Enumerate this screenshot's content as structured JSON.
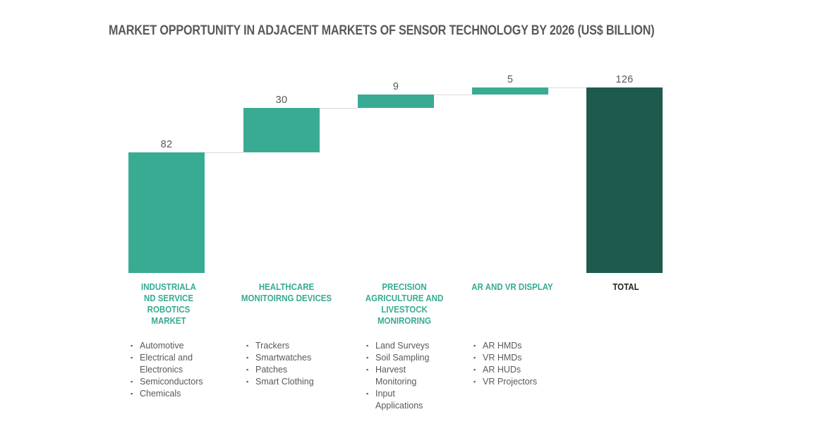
{
  "chart_data": {
    "type": "waterfall",
    "title": "MARKET OPPORTUNITY IN ADJACENT MARKETS OF SENSOR TECHNOLOGY BY 2026 (US$ BILLION)",
    "total": 126,
    "ylim": [
      0,
      126
    ],
    "bullet_glyph": "▪",
    "categories": [
      {
        "label": "INDUSTRIALA ND SERVICE ROBOTICS MARKET",
        "label_lines": [
          "INDUSTRIALA",
          "ND SERVICE",
          "ROBOTICS",
          "MARKET"
        ],
        "value": 82,
        "is_total": false,
        "sub_items": [
          "Automotive",
          "Electrical and Electronics",
          "Semiconductors",
          "Chemicals"
        ]
      },
      {
        "label": "HEALTHCARE MONITOIRNG DEVICES",
        "label_lines": [
          "HEALTHCARE",
          "MONITOIRNG DEVICES"
        ],
        "value": 30,
        "is_total": false,
        "sub_items": [
          "Trackers",
          "Smartwatches",
          "Patches",
          "Smart Clothing"
        ]
      },
      {
        "label": "PRECISION AGRICULTURE AND LIVESTOCK MONIRORING",
        "label_lines": [
          "PRECISION",
          "AGRICULTURE AND",
          "LIVESTOCK",
          "MONIRORING"
        ],
        "value": 9,
        "is_total": false,
        "sub_items": [
          "Land Surveys",
          "Soil Sampling",
          "Harvest Monitoring",
          "Input Applications"
        ]
      },
      {
        "label": "AR AND VR DISPLAY",
        "label_lines": [
          "AR AND VR DISPLAY"
        ],
        "value": 5,
        "is_total": false,
        "sub_items": [
          "AR HMDs",
          "VR HMDs",
          "AR HUDs",
          "VR Projectors"
        ]
      },
      {
        "label": "TOTAL",
        "label_lines": [
          "TOTAL"
        ],
        "value": 126,
        "is_total": true,
        "sub_items": []
      }
    ],
    "colors": {
      "step_bar": "#3aab93",
      "total_bar": "#1f5a4e",
      "connector": "#d9d9d9",
      "category_label": "#36ab93",
      "total_category_label": "#1f1f1f",
      "value_label": "#595959",
      "list_text": "#595959",
      "title_text": "#595959",
      "background": "#ffffff"
    }
  }
}
